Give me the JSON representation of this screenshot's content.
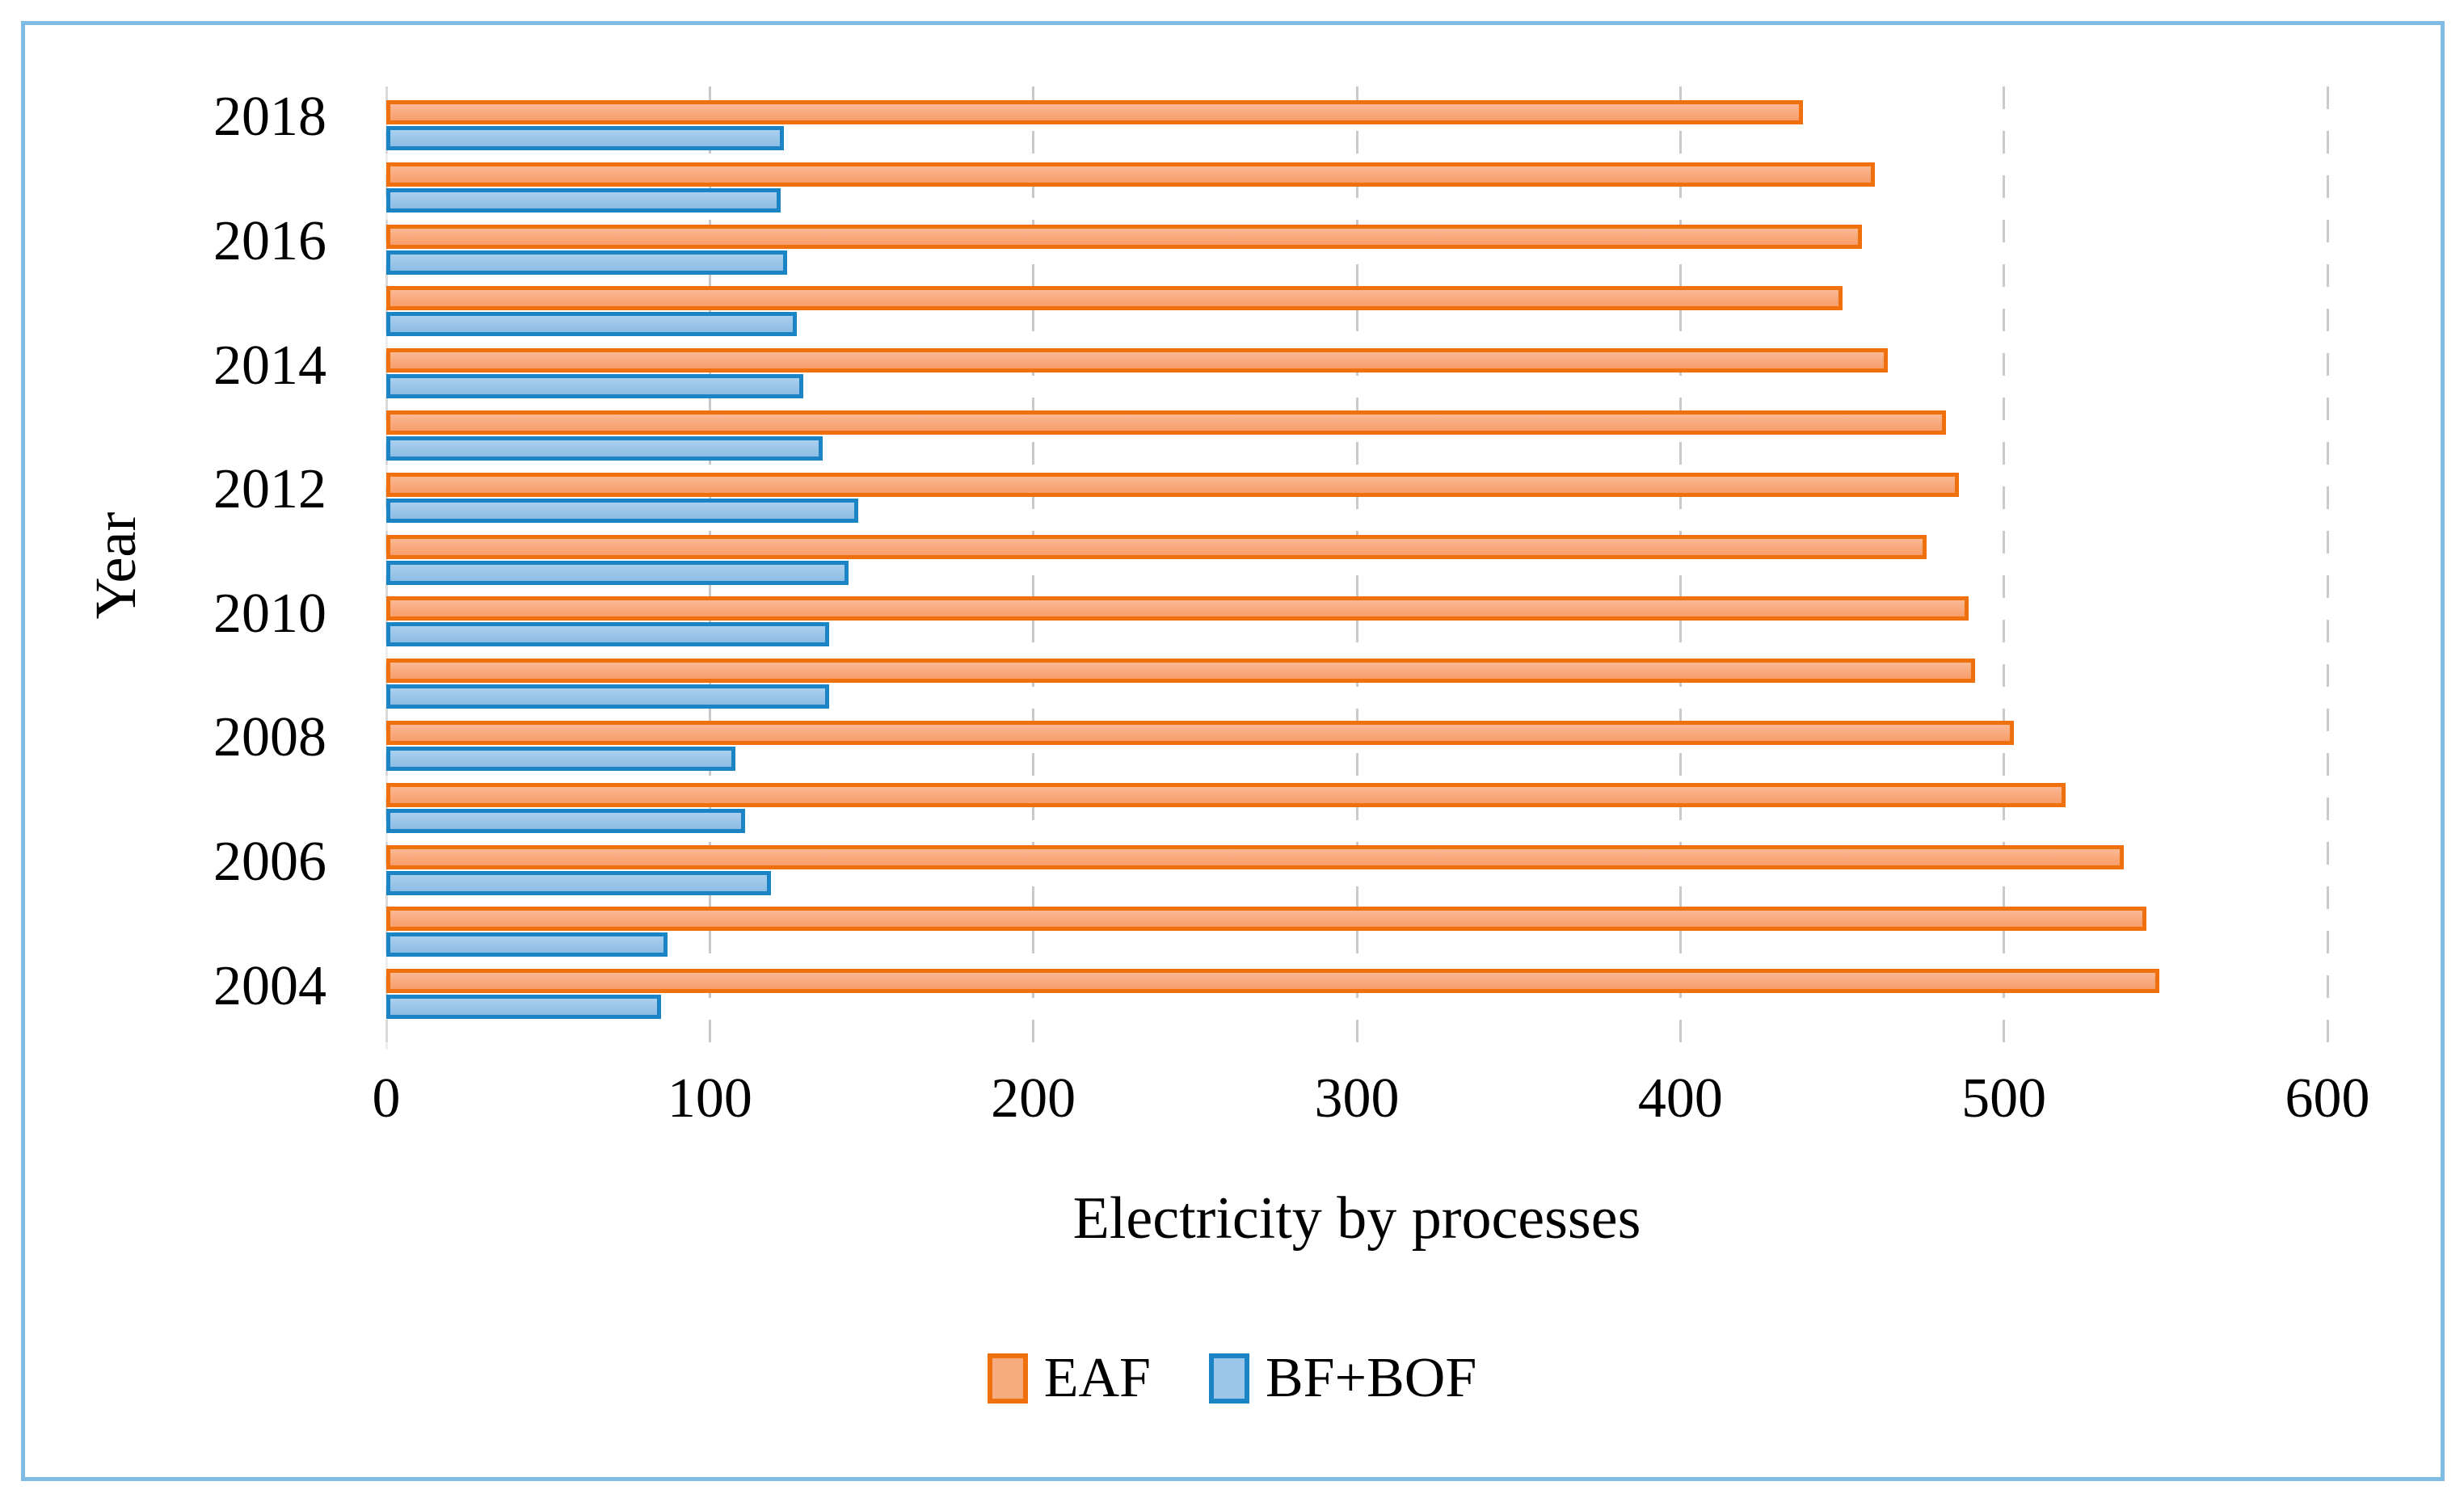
{
  "figure": {
    "frame_border_color": "#7FBCE5",
    "background_color": "#FFFFFF"
  },
  "chart_data": {
    "type": "bar",
    "orientation": "horizontal",
    "xlabel": "Electricity by processes",
    "ylabel": "Year",
    "xlim": [
      0,
      600
    ],
    "x_ticks": [
      0,
      100,
      200,
      300,
      400,
      500,
      600
    ],
    "grid": "vertical-dashed",
    "gridline_color": "#C9C9C9",
    "legend_position": "bottom-center",
    "categories_top_to_bottom": [
      "2018",
      "2017",
      "2016",
      "2015",
      "2014",
      "2013",
      "2012",
      "2011",
      "2010",
      "2009",
      "2008",
      "2007",
      "2006",
      "2005",
      "2004"
    ],
    "visible_category_labels": [
      "2018",
      "2016",
      "2014",
      "2012",
      "2010",
      "2008",
      "2006",
      "2004"
    ],
    "series": [
      {
        "name": "EAF",
        "fill_color": "#F9AB80",
        "border_color": "#F0700E",
        "values": [
          438,
          460,
          456,
          450,
          464,
          482,
          486,
          476,
          489,
          491,
          503,
          519,
          537,
          544,
          548
        ]
      },
      {
        "name": "BF+BOF",
        "fill_color": "#9CC6E9",
        "border_color": "#1B84C5",
        "values": [
          123,
          122,
          124,
          127,
          129,
          135,
          146,
          143,
          137,
          137,
          108,
          111,
          119,
          87,
          85
        ]
      }
    ]
  }
}
